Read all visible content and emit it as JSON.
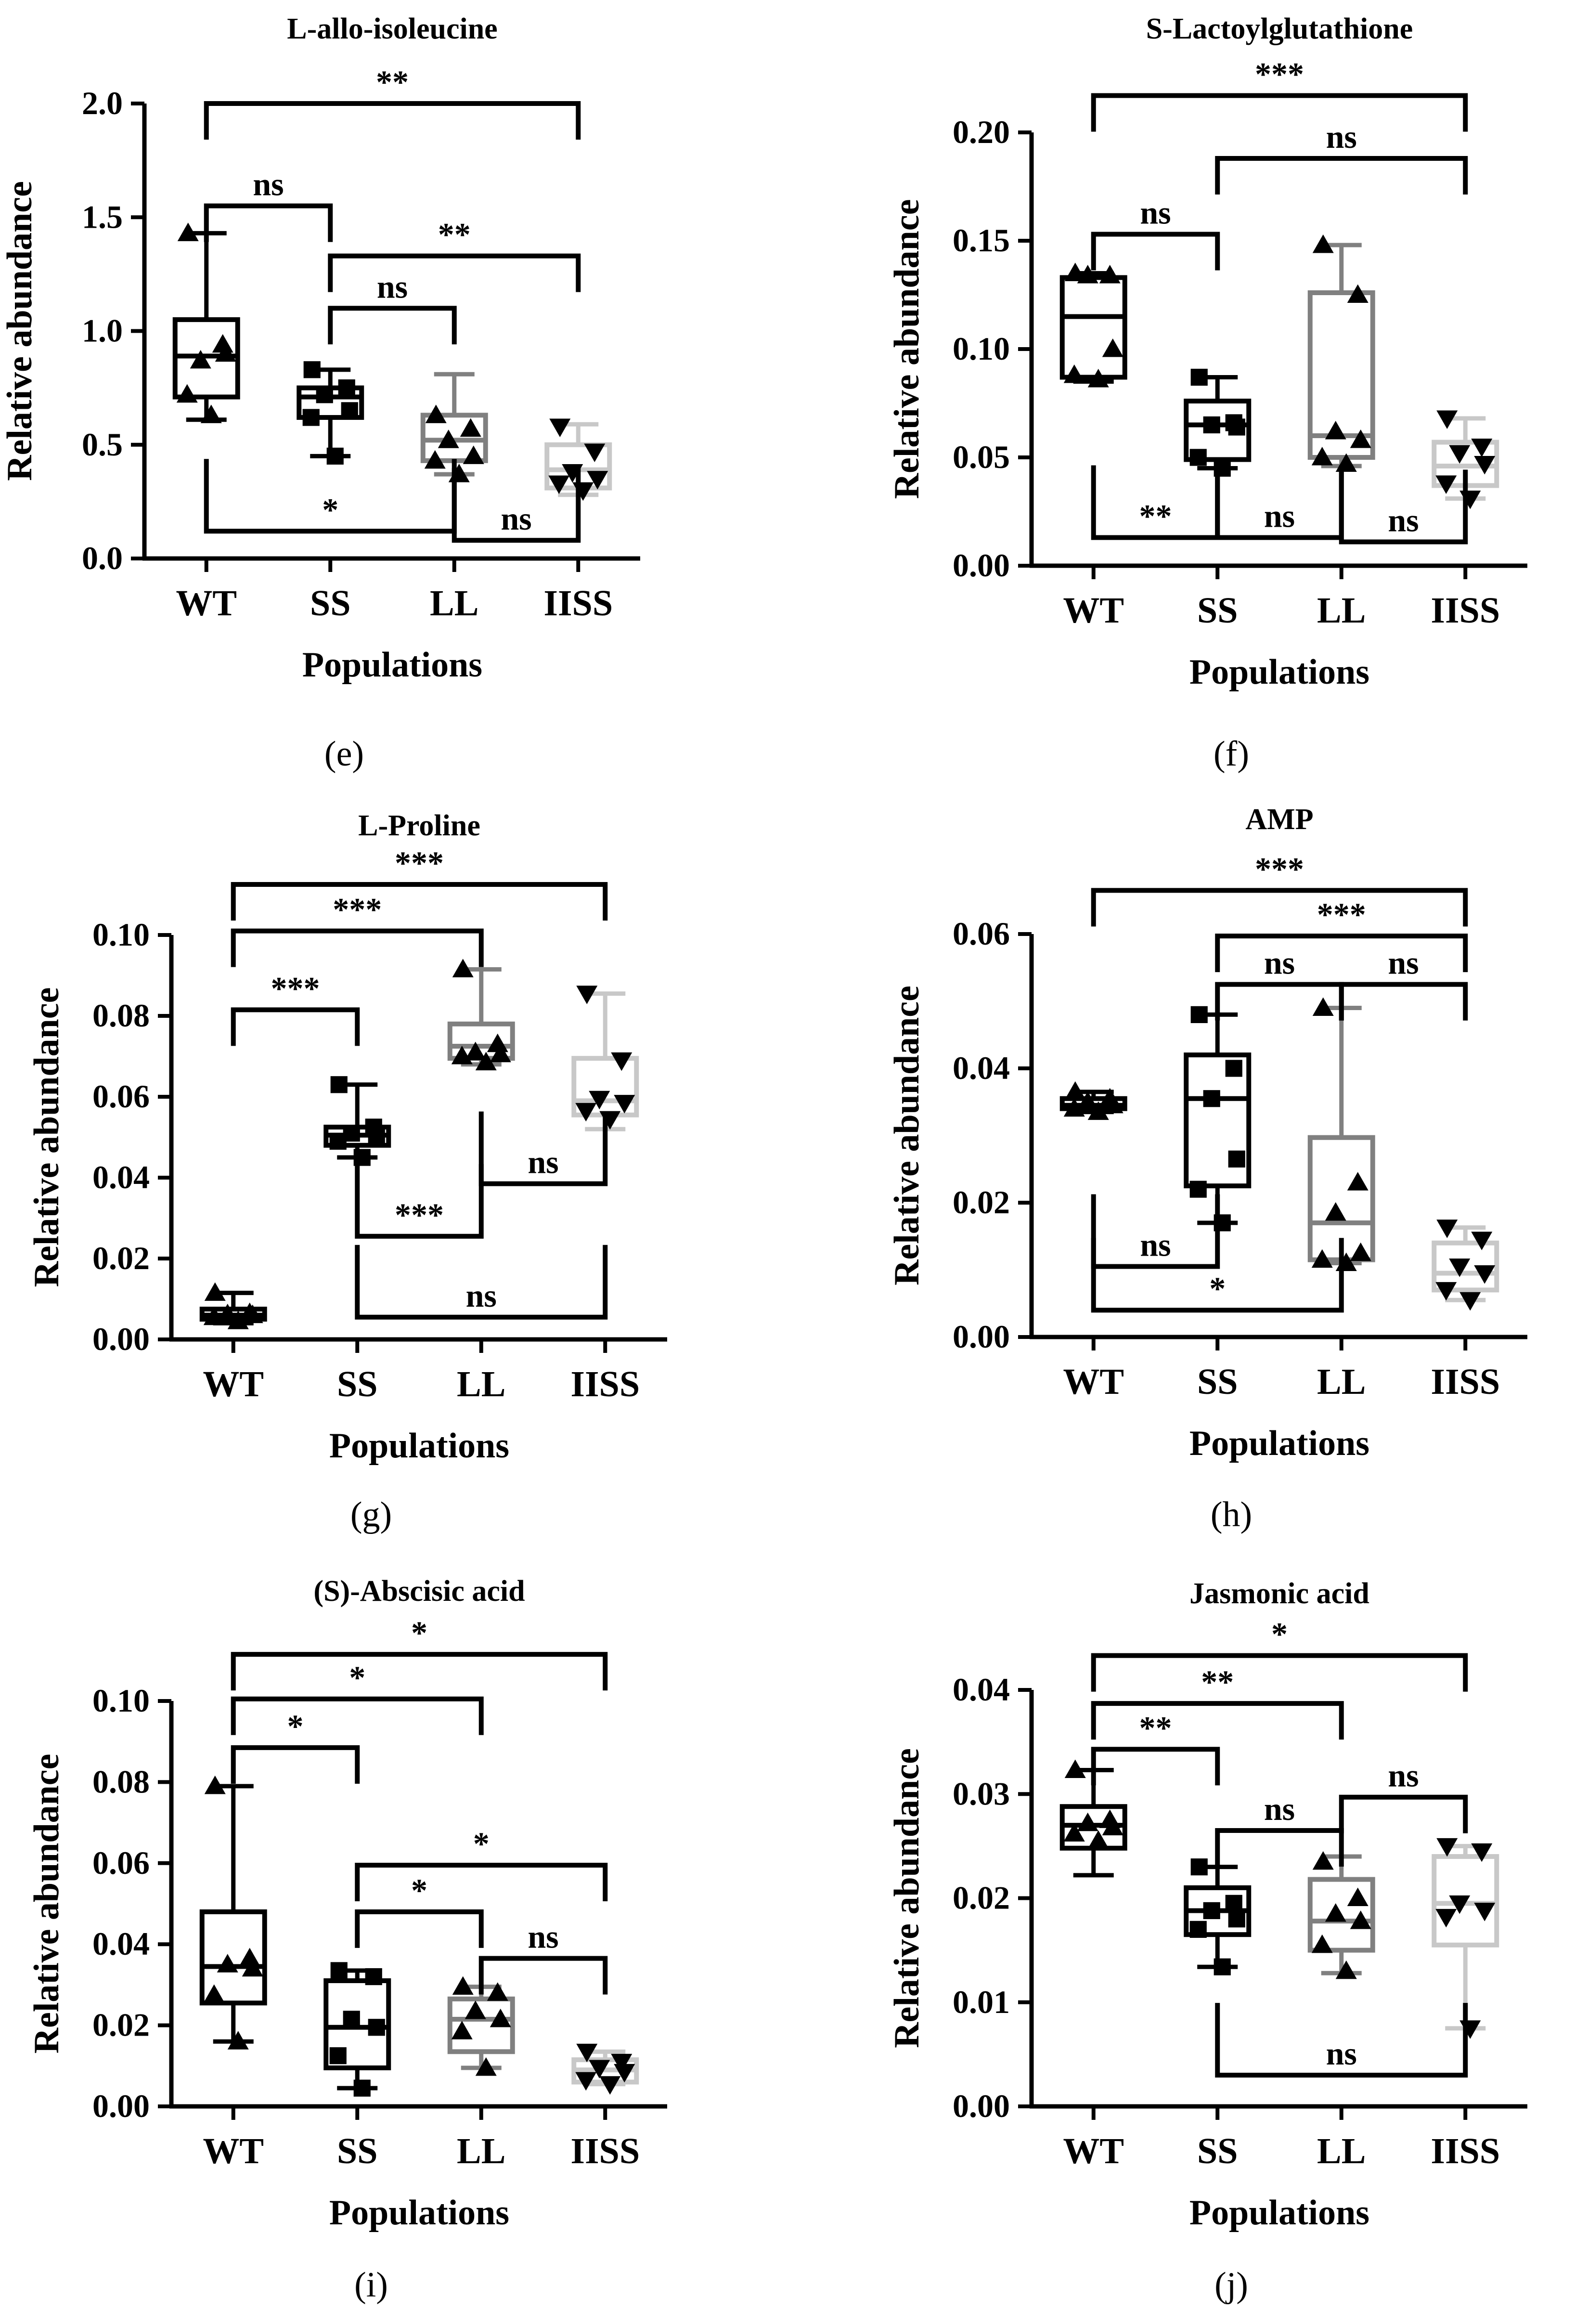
{
  "chart_data": [
    {
      "id": "e",
      "type": "box",
      "panel_label": "(e)",
      "title": "L-allo-isoleucine",
      "xlabel": "Populations",
      "ylabel": "Relative abundance",
      "categories": [
        "WT",
        "SS",
        "LL",
        "IISS"
      ],
      "yticks": [
        "0.0",
        "0.5",
        "1.0",
        "1.5",
        "2.0"
      ],
      "ylim": [
        0,
        2.0
      ],
      "boxes": [
        {
          "min": 0.61,
          "q1": 0.71,
          "median": 0.89,
          "q3": 1.05,
          "max": 1.43
        },
        {
          "min": 0.45,
          "q1": 0.62,
          "median": 0.71,
          "q3": 0.75,
          "max": 0.83
        },
        {
          "min": 0.37,
          "q1": 0.43,
          "median": 0.52,
          "q3": 0.63,
          "max": 0.81
        },
        {
          "min": 0.28,
          "q1": 0.31,
          "median": 0.39,
          "q3": 0.5,
          "max": 0.59
        }
      ],
      "points": [
        [
          1.43,
          0.94,
          0.87,
          0.9,
          0.72,
          0.63
        ],
        [
          0.83,
          0.75,
          0.72,
          0.65,
          0.62,
          0.45
        ],
        [
          0.63,
          0.57,
          0.52,
          0.45,
          0.43,
          0.37
        ],
        [
          0.58,
          0.47,
          0.38,
          0.35,
          0.33,
          0.3
        ]
      ],
      "comparisons": [
        {
          "from": "WT",
          "to": "IISS",
          "label": "**",
          "y": 2.0,
          "below": false
        },
        {
          "from": "WT",
          "to": "SS",
          "label": "ns",
          "y": 1.55,
          "below": false
        },
        {
          "from": "SS",
          "to": "IISS",
          "label": "**",
          "y": 1.33,
          "below": false
        },
        {
          "from": "SS",
          "to": "LL",
          "label": "ns",
          "y": 1.1,
          "below": false
        },
        {
          "from": "WT",
          "to": "LL",
          "label": "*",
          "y": 0.12,
          "below": true
        },
        {
          "from": "LL",
          "to": "IISS",
          "label": "ns",
          "y": 0.08,
          "below": true
        }
      ]
    },
    {
      "id": "f",
      "type": "box",
      "panel_label": "(f)",
      "title": "S-Lactoylglutathione",
      "xlabel": "Populations",
      "ylabel": "Relative abundance",
      "categories": [
        "WT",
        "SS",
        "LL",
        "IISS"
      ],
      "yticks": [
        "0.00",
        "0.05",
        "0.10",
        "0.15",
        "0.20"
      ],
      "ylim": [
        0,
        0.2
      ],
      "boxes": [
        {
          "min": 0.085,
          "q1": 0.087,
          "median": 0.115,
          "q3": 0.133,
          "max": 0.135
        },
        {
          "min": 0.045,
          "q1": 0.049,
          "median": 0.065,
          "q3": 0.076,
          "max": 0.087
        },
        {
          "min": 0.046,
          "q1": 0.05,
          "median": 0.06,
          "q3": 0.126,
          "max": 0.148
        },
        {
          "min": 0.031,
          "q1": 0.037,
          "median": 0.046,
          "q3": 0.057,
          "max": 0.068
        }
      ],
      "points": [
        [
          0.135,
          0.134,
          0.134,
          0.1,
          0.088,
          0.086
        ],
        [
          0.087,
          0.066,
          0.065,
          0.064,
          0.05,
          0.045
        ],
        [
          0.148,
          0.125,
          0.062,
          0.058,
          0.05,
          0.047
        ],
        [
          0.068,
          0.055,
          0.052,
          0.047,
          0.038,
          0.031
        ]
      ],
      "comparisons": [
        {
          "from": "WT",
          "to": "IISS",
          "label": "***",
          "y": 0.217,
          "below": false
        },
        {
          "from": "SS",
          "to": "IISS",
          "label": "ns",
          "y": 0.188,
          "below": false
        },
        {
          "from": "WT",
          "to": "SS",
          "label": "ns",
          "y": 0.153,
          "below": false
        },
        {
          "from": "WT",
          "to": "SS",
          "label": "**",
          "y": 0.013,
          "below": true
        },
        {
          "from": "SS",
          "to": "LL",
          "label": "ns",
          "y": 0.013,
          "below": true
        },
        {
          "from": "LL",
          "to": "IISS",
          "label": "ns",
          "y": 0.011,
          "below": true
        }
      ]
    },
    {
      "id": "g",
      "type": "box",
      "panel_label": "(g)",
      "title": "L-Proline",
      "xlabel": "Populations",
      "ylabel": "Relative abundance",
      "categories": [
        "WT",
        "SS",
        "LL",
        "IISS"
      ],
      "yticks": [
        "0.00",
        "0.02",
        "0.04",
        "0.06",
        "0.08",
        "0.10"
      ],
      "ylim": [
        0,
        0.1
      ],
      "boxes": [
        {
          "min": 0.004,
          "q1": 0.005,
          "median": 0.006,
          "q3": 0.0075,
          "max": 0.0115
        },
        {
          "min": 0.045,
          "q1": 0.048,
          "median": 0.0505,
          "q3": 0.0525,
          "max": 0.063
        },
        {
          "min": 0.068,
          "q1": 0.0695,
          "median": 0.0725,
          "q3": 0.078,
          "max": 0.0915
        },
        {
          "min": 0.052,
          "q1": 0.0555,
          "median": 0.059,
          "q3": 0.0695,
          "max": 0.0855
        }
      ],
      "points": [
        [
          0.0115,
          0.0065,
          0.0062,
          0.006,
          0.0055,
          0.0045
        ],
        [
          0.063,
          0.0525,
          0.051,
          0.0505,
          0.049,
          0.045
        ],
        [
          0.0915,
          0.073,
          0.071,
          0.0705,
          0.07,
          0.0685
        ],
        [
          0.0855,
          0.069,
          0.0595,
          0.0585,
          0.0565,
          0.0545
        ]
      ],
      "comparisons": [
        {
          "from": "WT",
          "to": "IISS",
          "label": "***",
          "y": 0.1125,
          "below": false
        },
        {
          "from": "WT",
          "to": "LL",
          "label": "***",
          "y": 0.101,
          "below": false
        },
        {
          "from": "WT",
          "to": "SS",
          "label": "***",
          "y": 0.0815,
          "below": false
        },
        {
          "from": "LL",
          "to": "IISS",
          "label": "ns",
          "y": 0.0385,
          "below": true
        },
        {
          "from": "SS",
          "to": "LL",
          "label": "***",
          "y": 0.0255,
          "below": true
        },
        {
          "from": "SS",
          "to": "IISS",
          "label": "ns",
          "y": 0.0055,
          "below": true
        }
      ]
    },
    {
      "id": "h",
      "type": "box",
      "panel_label": "(h)",
      "title": "AMP",
      "xlabel": "Populations",
      "ylabel": "Relative abundance",
      "categories": [
        "WT",
        "SS",
        "LL",
        "IISS"
      ],
      "yticks": [
        "0.00",
        "0.02",
        "0.04",
        "0.06"
      ],
      "ylim": [
        0,
        0.06
      ],
      "boxes": [
        {
          "min": 0.0335,
          "q1": 0.034,
          "median": 0.0345,
          "q3": 0.0355,
          "max": 0.0365
        },
        {
          "min": 0.017,
          "q1": 0.0225,
          "median": 0.0355,
          "q3": 0.042,
          "max": 0.048
        },
        {
          "min": 0.011,
          "q1": 0.0115,
          "median": 0.017,
          "q3": 0.0297,
          "max": 0.049
        },
        {
          "min": 0.0055,
          "q1": 0.007,
          "median": 0.0095,
          "q3": 0.014,
          "max": 0.0163
        }
      ],
      "points": [
        [
          0.0365,
          0.0355,
          0.035,
          0.0345,
          0.034,
          0.0335
        ],
        [
          0.048,
          0.04,
          0.0355,
          0.0265,
          0.022,
          0.017
        ],
        [
          0.049,
          0.023,
          0.0185,
          0.0125,
          0.0115,
          0.011
        ],
        [
          0.0163,
          0.0145,
          0.0105,
          0.0095,
          0.007,
          0.0055
        ]
      ],
      "comparisons": [
        {
          "from": "WT",
          "to": "IISS",
          "label": "***",
          "y": 0.0665,
          "below": false
        },
        {
          "from": "SS",
          "to": "IISS",
          "label": "***",
          "y": 0.0597,
          "below": false
        },
        {
          "from": "SS",
          "to": "LL",
          "label": "ns",
          "y": 0.0525,
          "below": false
        },
        {
          "from": "LL",
          "to": "IISS",
          "label": "ns",
          "y": 0.0525,
          "below": false
        },
        {
          "from": "WT",
          "to": "SS",
          "label": "ns",
          "y": 0.0105,
          "below": true
        },
        {
          "from": "WT",
          "to": "LL",
          "label": "*",
          "y": 0.004,
          "below": true
        }
      ]
    },
    {
      "id": "i",
      "type": "box",
      "panel_label": "(i)",
      "title": "(S)-Abscisic acid",
      "xlabel": "Populations",
      "ylabel": "Relative abundance",
      "categories": [
        "WT",
        "SS",
        "LL",
        "IISS"
      ],
      "yticks": [
        "0.00",
        "0.02",
        "0.04",
        "0.06",
        "0.08",
        "0.10"
      ],
      "ylim": [
        0,
        0.1
      ],
      "boxes": [
        {
          "min": 0.016,
          "q1": 0.0255,
          "median": 0.0345,
          "q3": 0.048,
          "max": 0.079
        },
        {
          "min": 0.0045,
          "q1": 0.0095,
          "median": 0.0195,
          "q3": 0.031,
          "max": 0.0335
        },
        {
          "min": 0.0095,
          "q1": 0.0135,
          "median": 0.0215,
          "q3": 0.0265,
          "max": 0.0295
        },
        {
          "min": 0.0055,
          "q1": 0.006,
          "median": 0.009,
          "q3": 0.0115,
          "max": 0.0135
        }
      ],
      "points": [
        [
          0.079,
          0.0365,
          0.035,
          0.034,
          0.0275,
          0.016
        ],
        [
          0.0335,
          0.032,
          0.0215,
          0.0195,
          0.0125,
          0.0045
        ],
        [
          0.0295,
          0.028,
          0.0235,
          0.0215,
          0.0185,
          0.0095
        ],
        [
          0.0135,
          0.011,
          0.0095,
          0.0085,
          0.0065,
          0.0055
        ]
      ],
      "comparisons": [
        {
          "from": "WT",
          "to": "IISS",
          "label": "*",
          "y": 0.1115,
          "below": false
        },
        {
          "from": "WT",
          "to": "LL",
          "label": "*",
          "y": 0.1005,
          "below": false
        },
        {
          "from": "WT",
          "to": "SS",
          "label": "*",
          "y": 0.0885,
          "below": false
        },
        {
          "from": "SS",
          "to": "IISS",
          "label": "*",
          "y": 0.0595,
          "below": false
        },
        {
          "from": "SS",
          "to": "LL",
          "label": "*",
          "y": 0.048,
          "below": false
        },
        {
          "from": "LL",
          "to": "IISS",
          "label": "ns",
          "y": 0.0365,
          "below": false
        }
      ]
    },
    {
      "id": "j",
      "type": "box",
      "panel_label": "(j)",
      "title": "Jasmonic acid",
      "xlabel": "Populations",
      "ylabel": "Relative abundance",
      "categories": [
        "WT",
        "SS",
        "LL",
        "IISS"
      ],
      "yticks": [
        "0.00",
        "0.01",
        "0.02",
        "0.03",
        "0.04"
      ],
      "ylim": [
        0,
        0.04
      ],
      "boxes": [
        {
          "min": 0.0222,
          "q1": 0.0248,
          "median": 0.027,
          "q3": 0.0288,
          "max": 0.0323
        },
        {
          "min": 0.0134,
          "q1": 0.0165,
          "median": 0.0188,
          "q3": 0.021,
          "max": 0.023
        },
        {
          "min": 0.0128,
          "q1": 0.015,
          "median": 0.0178,
          "q3": 0.0218,
          "max": 0.024
        },
        {
          "min": 0.0075,
          "q1": 0.0155,
          "median": 0.0195,
          "q3": 0.024,
          "max": 0.025
        }
      ],
      "points": [
        [
          0.0323,
          0.0275,
          0.0272,
          0.0268,
          0.0262,
          0.0255
        ],
        [
          0.023,
          0.0195,
          0.0188,
          0.018,
          0.017,
          0.0134
        ],
        [
          0.0235,
          0.02,
          0.0185,
          0.0178,
          0.0155,
          0.013
        ],
        [
          0.025,
          0.0245,
          0.0195,
          0.0188,
          0.0182,
          0.0075
        ]
      ],
      "comparisons": [
        {
          "from": "WT",
          "to": "IISS",
          "label": "*",
          "y": 0.0433,
          "below": false
        },
        {
          "from": "WT",
          "to": "LL",
          "label": "**",
          "y": 0.0387,
          "below": false
        },
        {
          "from": "WT",
          "to": "SS",
          "label": "**",
          "y": 0.0343,
          "below": false
        },
        {
          "from": "LL",
          "to": "IISS",
          "label": "ns",
          "y": 0.0297,
          "below": false
        },
        {
          "from": "SS",
          "to": "LL",
          "label": "ns",
          "y": 0.0265,
          "below": false
        },
        {
          "from": "SS",
          "to": "IISS",
          "label": "ns",
          "y": 0.003,
          "below": true
        }
      ]
    }
  ],
  "series_style": {
    "colors": [
      "#000000",
      "#000000",
      "#808080",
      "#c8c8c8"
    ],
    "markers": [
      "triangle-up",
      "square",
      "triangle-up",
      "triangle-down"
    ]
  }
}
